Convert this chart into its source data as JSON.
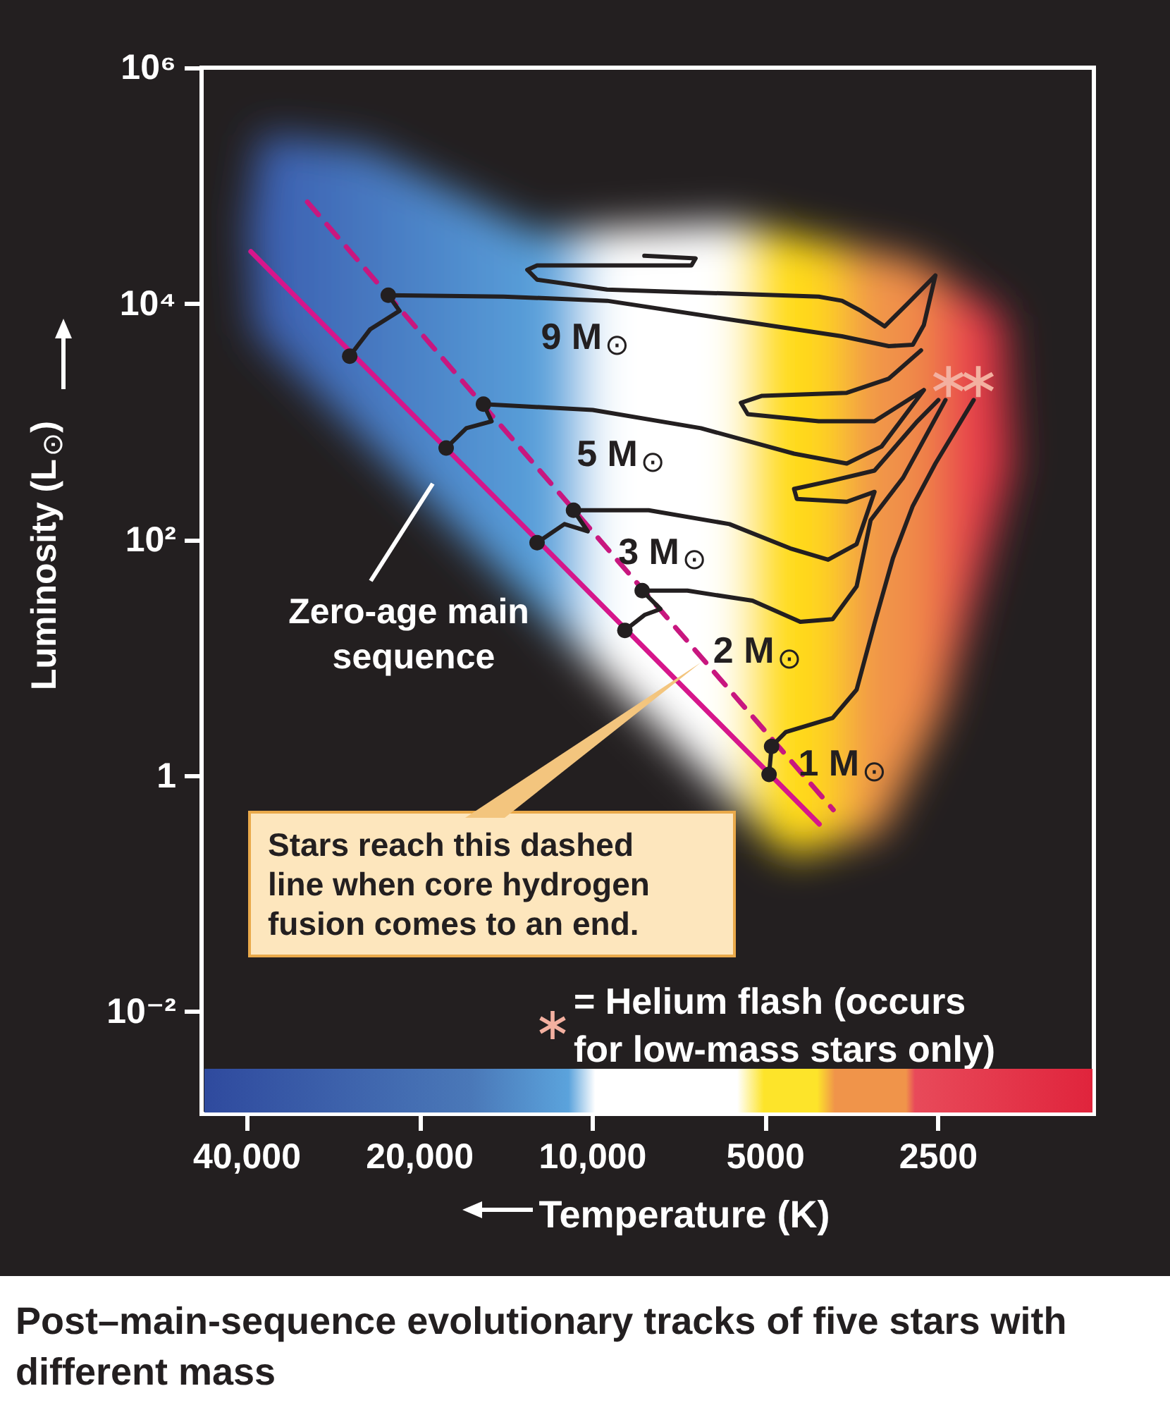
{
  "chart_data": {
    "type": "line",
    "title": "Post–main-sequence evolutionary tracks of five stars with different mass",
    "xlabel": "Temperature (K)",
    "ylabel": "Luminosity (L$_{⊙}$)",
    "log": "xy",
    "legend": "bottom right",
    "xlim": [
      48000,
      1340
    ],
    "ylim": [
      0.00137,
      1000000
    ],
    "xticks": [
      {
        "value": 40000,
        "label": "40,000"
      },
      {
        "value": 20000,
        "label": "20,000"
      },
      {
        "value": 10000,
        "label": "10,000"
      },
      5000,
      2500
    ],
    "yticks": [
      {
        "value": 1000000,
        "label": "10⁶"
      },
      {
        "value": 10000,
        "label": "10⁴"
      },
      {
        "value": 100,
        "label": "10²"
      },
      1,
      {
        "value": 0.01,
        "label": "10⁻²"
      }
    ],
    "annotations": [
      "Zero-age main sequence",
      "Stars reach this dashed line when core hydrogen fusion comes to an end."
    ],
    "series": [
      {
        "color": "#d6168b",
        "marker": "none",
        "x": [
          39400,
          4030
        ],
        "values": [
          27700,
          0.39
        ]
      },
      {
        "color": "#c8177f",
        "marker": "none",
        "line_style": "dashed",
        "x": [
          31400,
          3810
        ],
        "values": [
          72800,
          0.516
        ]
      },
      {
        "name": "9 M$_{⊙}$",
        "color": "#231f20",
        "marker": "none",
        "x": [
          26500,
          24400,
          21700,
          22700,
          14300,
          9440,
          5370,
          3680,
          3050,
          2770,
          2650,
          2530,
          2830,
          3100,
          3410,
          3680,
          4040,
          9440,
          12500,
          13000,
          12500,
          6730,
          6620,
          8130
        ],
        "values": [
          3600,
          6090,
          8710,
          11800,
          11500,
          10600,
          6980,
          5300,
          4370,
          4500,
          6610,
          17400,
          10000,
          6430,
          8710,
          10600,
          11500,
          13200,
          16000,
          19400,
          21100,
          21100,
          24200,
          25500
        ]
      },
      {
        "name": "5 M$_{⊙}$",
        "color": "#231f20",
        "marker": "none",
        "x": [
          18000,
          16600,
          15000,
          15500,
          10000,
          6480,
          4460,
          3610,
          3140,
          2650,
          3230,
          4040,
          5370,
          5520,
          5070,
          3610,
          3050,
          2680
        ],
        "values": [
          600,
          883,
          1010,
          1410,
          1260,
          883,
          537,
          443,
          617,
          1860,
          1010,
          1010,
          1160,
          1450,
          1660,
          1760,
          2320,
          4030
        ]
      },
      {
        "name": "3 M$_{⊙}$",
        "color": "#231f20",
        "marker": "none",
        "x": [
          12500,
          11200,
          10200,
          10800,
          7990,
          5780,
          4530,
          3890,
          3470,
          3230,
          3610,
          4410,
          4460,
          3820,
          3230,
          2720,
          2500
        ],
        "values": [
          94.6,
          136,
          118,
          178,
          178,
          136,
          84.7,
          67.9,
          92,
          255,
          210,
          222,
          270,
          318,
          386,
          1010,
          1530
        ]
      },
      {
        "name": "2 M$_{⊙}$",
        "color": "#231f20",
        "marker": "none",
        "x": [
          8790,
          8110,
          7620,
          8200,
          6840,
          5270,
          4350,
          3820,
          3470,
          3280,
          2880,
          2430
        ],
        "values": [
          17.1,
          23.2,
          25.9,
          37.1,
          37.1,
          30.5,
          20.2,
          21.3,
          40.3,
          147,
          336,
          1530
        ]
      },
      {
        "name": "1 M$_{⊙}$",
        "color": "#231f20",
        "marker": "none",
        "x": [
          4930,
          4880,
          4610,
          3820,
          3470,
          3230,
          3000,
          2770,
          2530,
          2170
        ],
        "values": [
          1.03,
          1.78,
          2.35,
          3.1,
          5.38,
          19.6,
          69.8,
          194,
          443,
          1530
        ]
      },
      {
        "type": "scatter",
        "color": "#231f20",
        "marker": "circle",
        "x": [
          26500,
          22700,
          18000,
          15500,
          12500,
          10800,
          8790,
          8200,
          4930,
          4880
        ],
        "values": [
          3600,
          11800,
          600,
          1410,
          94.6,
          178,
          17.1,
          37.1,
          1.03,
          1.78
        ]
      },
      {
        "type": "scatter",
        "name": "= Helium flash (occurs for low-mass stars only)",
        "color": "#f3b0a0",
        "marker": "star",
        "x": [
          2400,
          2130
        ],
        "values": [
          2190,
          2190
        ]
      }
    ]
  }
}
